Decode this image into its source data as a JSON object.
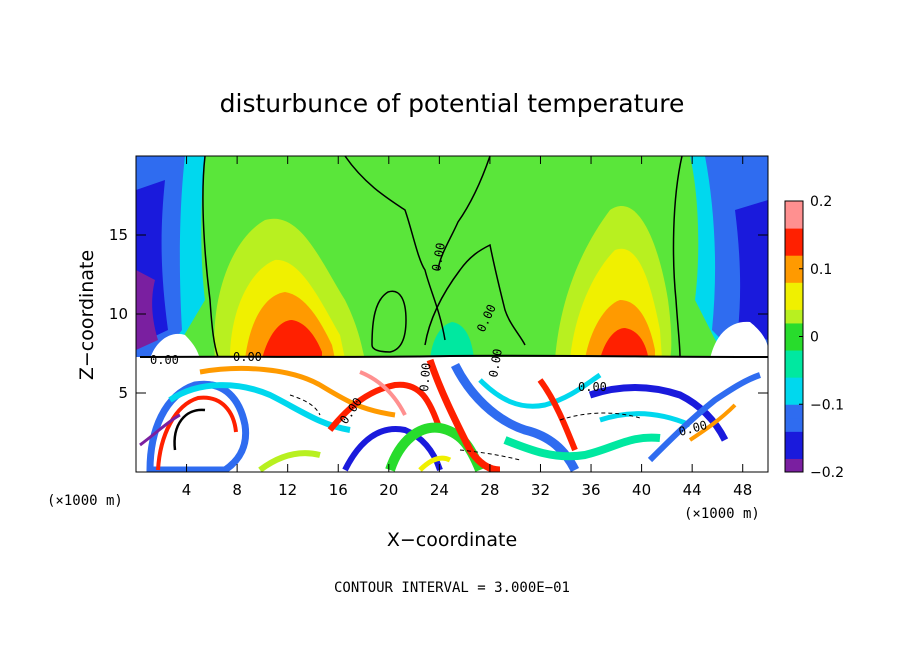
{
  "chart_data": {
    "type": "heatmap",
    "title": "disturbunce of potential temperature",
    "xlabel": "X−coordinate",
    "ylabel": "Z−coordinate",
    "x_unit_left": "(×1000 m)",
    "x_unit_right": "(×1000 m)",
    "footer": "CONTOUR INTERVAL = 3.000E−01",
    "xlim": [
      0,
      50
    ],
    "ylim": [
      0,
      20
    ],
    "x_ticks": [
      4,
      8,
      12,
      16,
      20,
      24,
      28,
      32,
      36,
      40,
      44,
      48
    ],
    "y_ticks": [
      5,
      10,
      15
    ],
    "colorbar": {
      "range": [
        -0.2,
        0.2
      ],
      "tick_values": [
        0.2,
        0.1,
        0,
        -0.1,
        -0.2
      ],
      "tick_labels": [
        "0.2",
        "0.1",
        "0",
        "−0.1",
        "−0.2"
      ]
    },
    "contour_labels": [
      "0.00",
      "0.00",
      "0.00",
      "0.00",
      "0.00",
      "0.00",
      "0.00",
      "0.00",
      "0.00"
    ],
    "colors": {
      "purple": "#7a1fa0",
      "dark_blue": "#1a1adc",
      "blue": "#2f6cf0",
      "cyan": "#00d8ee",
      "teal": "#00e8a0",
      "green": "#28dc2c",
      "yellow_green": "#b8f020",
      "yellow": "#f0f000",
      "orange": "#ff9a00",
      "red": "#ff2000",
      "pink": "#ff9090"
    }
  }
}
